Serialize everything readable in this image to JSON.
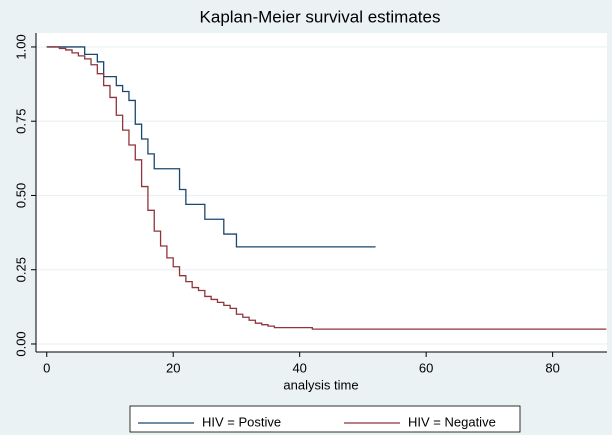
{
  "chart_data": {
    "type": "step",
    "title": "Kaplan-Meier survival estimates",
    "x_label": "analysis time",
    "xlim": [
      -1.7,
      88.6
    ],
    "xticks": [
      0,
      20,
      40,
      60,
      80
    ],
    "ylim": [
      -0.027,
      1.047
    ],
    "yticks": [
      {
        "value": 0,
        "label": "0.00"
      },
      {
        "value": 0.25,
        "label": "0.25"
      },
      {
        "value": 0.5,
        "label": "0.50"
      },
      {
        "value": 0.75,
        "label": "0.75"
      },
      {
        "value": 1,
        "label": "1.00"
      }
    ],
    "grid": true,
    "legend": "bottom",
    "series": [
      {
        "name": "HIV = Postive",
        "color": "#1a476f",
        "x": [
          0,
          6,
          8,
          9,
          11,
          12,
          13,
          14,
          15,
          16,
          17,
          21,
          22,
          25,
          28,
          30,
          52
        ],
        "values": [
          1.0,
          0.975,
          0.95,
          0.9,
          0.87,
          0.85,
          0.82,
          0.74,
          0.69,
          0.64,
          0.59,
          0.52,
          0.47,
          0.42,
          0.37,
          0.327,
          0.327
        ]
      },
      {
        "name": "HIV = Negative",
        "color": "#90353b",
        "x": [
          0,
          2,
          3,
          4,
          5,
          6,
          7,
          8,
          9,
          10,
          11,
          12,
          13,
          14,
          15,
          16,
          17,
          18,
          19,
          20,
          21,
          22,
          23,
          24,
          25,
          26,
          27,
          28,
          29,
          30,
          31,
          32,
          33,
          34,
          35,
          36,
          42,
          88.5
        ],
        "values": [
          1.0,
          0.995,
          0.99,
          0.98,
          0.97,
          0.96,
          0.94,
          0.91,
          0.87,
          0.83,
          0.77,
          0.72,
          0.67,
          0.62,
          0.53,
          0.45,
          0.38,
          0.33,
          0.29,
          0.26,
          0.23,
          0.21,
          0.19,
          0.18,
          0.16,
          0.15,
          0.14,
          0.13,
          0.12,
          0.1,
          0.09,
          0.08,
          0.07,
          0.065,
          0.06,
          0.055,
          0.05,
          0.05
        ]
      }
    ]
  }
}
